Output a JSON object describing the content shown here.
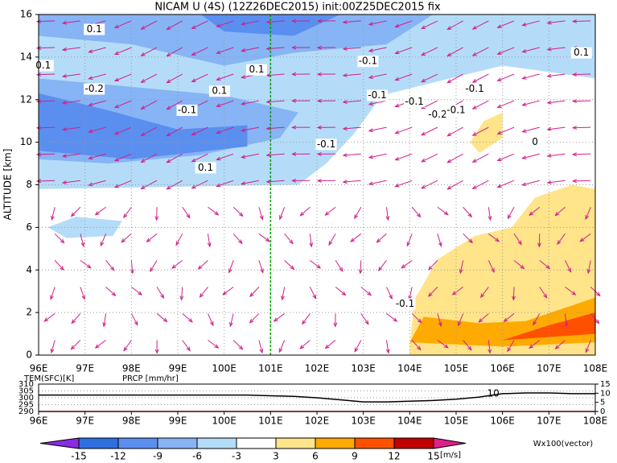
{
  "chart_data": [
    {
      "type": "field",
      "title": "NICAM U (4S) (12Z26DEC2015) init:00Z25DEC2015 fix",
      "ylabel": "ALTITUDE [km]",
      "xlim": [
        96,
        108
      ],
      "xticks": [
        {
          "value": 96,
          "label": "96E"
        },
        {
          "value": 97,
          "label": "97E"
        },
        {
          "value": 98,
          "label": "98E"
        },
        {
          "value": 99,
          "label": "99E"
        },
        {
          "value": 100,
          "label": "100E"
        },
        {
          "value": 101,
          "label": "101E"
        },
        {
          "value": 102,
          "label": "102E"
        },
        {
          "value": 103,
          "label": "103E"
        },
        {
          "value": 104,
          "label": "104E"
        },
        {
          "value": 105,
          "label": "105E"
        },
        {
          "value": 106,
          "label": "106E"
        },
        {
          "value": 107,
          "label": "107E"
        },
        {
          "value": 108,
          "label": "108E"
        }
      ],
      "ylim": [
        0,
        16
      ],
      "yticks": [
        0,
        2,
        4,
        6,
        8,
        10,
        12,
        14,
        16
      ],
      "grid": true,
      "marker_x": 101,
      "marker_color": "#00a000",
      "contour_labels": [
        "0.1",
        "0.1",
        "-0.2",
        "0.1",
        "-0.1",
        "0.1",
        "-0.1",
        "-0.1",
        "-0.1",
        "-0.1",
        "-0.2",
        "-0.1",
        "0",
        "0.1",
        "-0.1",
        "0.1",
        "-0.1"
      ]
    },
    {
      "type": "line",
      "x": [
        96,
        96.5,
        97,
        97.5,
        98,
        98.5,
        99,
        99.5,
        100,
        100.5,
        101,
        101.5,
        102,
        102.5,
        103,
        103.5,
        104,
        104.5,
        105,
        105.5,
        106,
        106.5,
        107,
        107.5,
        108
      ],
      "xlim": [
        96,
        108
      ],
      "xticks": [
        {
          "value": 96,
          "label": "96E"
        },
        {
          "value": 97,
          "label": "97E"
        },
        {
          "value": 98,
          "label": "98E"
        },
        {
          "value": 99,
          "label": "99E"
        },
        {
          "value": 100,
          "label": "100E"
        },
        {
          "value": 101,
          "label": "101E"
        },
        {
          "value": 102,
          "label": "102E"
        },
        {
          "value": 103,
          "label": "103E"
        },
        {
          "value": 104,
          "label": "104E"
        },
        {
          "value": 105,
          "label": "105E"
        },
        {
          "value": 106,
          "label": "106E"
        },
        {
          "value": 107,
          "label": "107E"
        },
        {
          "value": 108,
          "label": "108E"
        }
      ],
      "ylim": [
        290,
        310
      ],
      "yticks": [
        290,
        295,
        300,
        305,
        310
      ],
      "y2lim": [
        0,
        15
      ],
      "y2ticks": [
        0,
        5,
        10,
        15
      ],
      "annotation": "10",
      "series": [
        {
          "name": "TEM(SFC)[K]",
          "color": "#000000",
          "values": [
            302,
            302,
            302,
            302,
            302,
            302,
            302,
            302,
            302,
            302,
            301.5,
            301,
            300,
            298.5,
            297,
            297,
            297.5,
            298,
            299,
            300.5,
            303,
            303.5,
            303.5,
            303,
            303
          ]
        },
        {
          "name": "PRCP [mm/hr]",
          "color": "#e00000",
          "axis": "y2",
          "values": [
            0,
            0,
            0,
            0,
            0,
            0,
            0,
            0,
            0,
            0,
            0,
            0,
            0,
            0,
            0,
            0,
            0,
            0,
            0,
            0,
            0,
            0,
            0,
            0,
            0
          ]
        }
      ]
    },
    {
      "type": "colorbar",
      "levels": [
        -15,
        -12,
        -9,
        -6,
        -3,
        3,
        6,
        9,
        12,
        15
      ],
      "colors": [
        "#8a2be2",
        "#2e6fe0",
        "#5a8ff0",
        "#86b4f5",
        "#b4dcf8",
        "#ffffff",
        "#ffe48a",
        "#ffaa00",
        "#ff5000",
        "#c00000",
        "#e0208a"
      ],
      "unit": "[m/s]",
      "vector_label": "Wx100(vector)"
    }
  ]
}
